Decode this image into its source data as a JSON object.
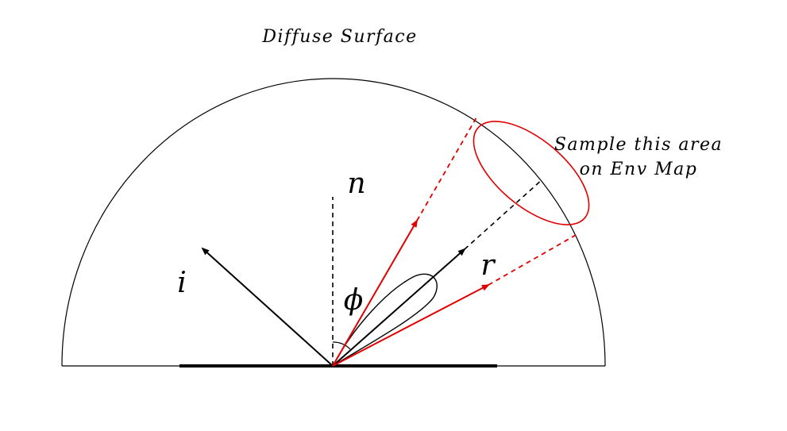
{
  "title": "Diffuse Surface",
  "annotation": {
    "line1": "Sample this area",
    "line2": "on Env Map"
  },
  "symbols": {
    "normal": "n",
    "incident": "i",
    "reflected": "r",
    "angle": "ϕ"
  },
  "colors": {
    "ink": "#000000",
    "accent": "#e00000"
  }
}
